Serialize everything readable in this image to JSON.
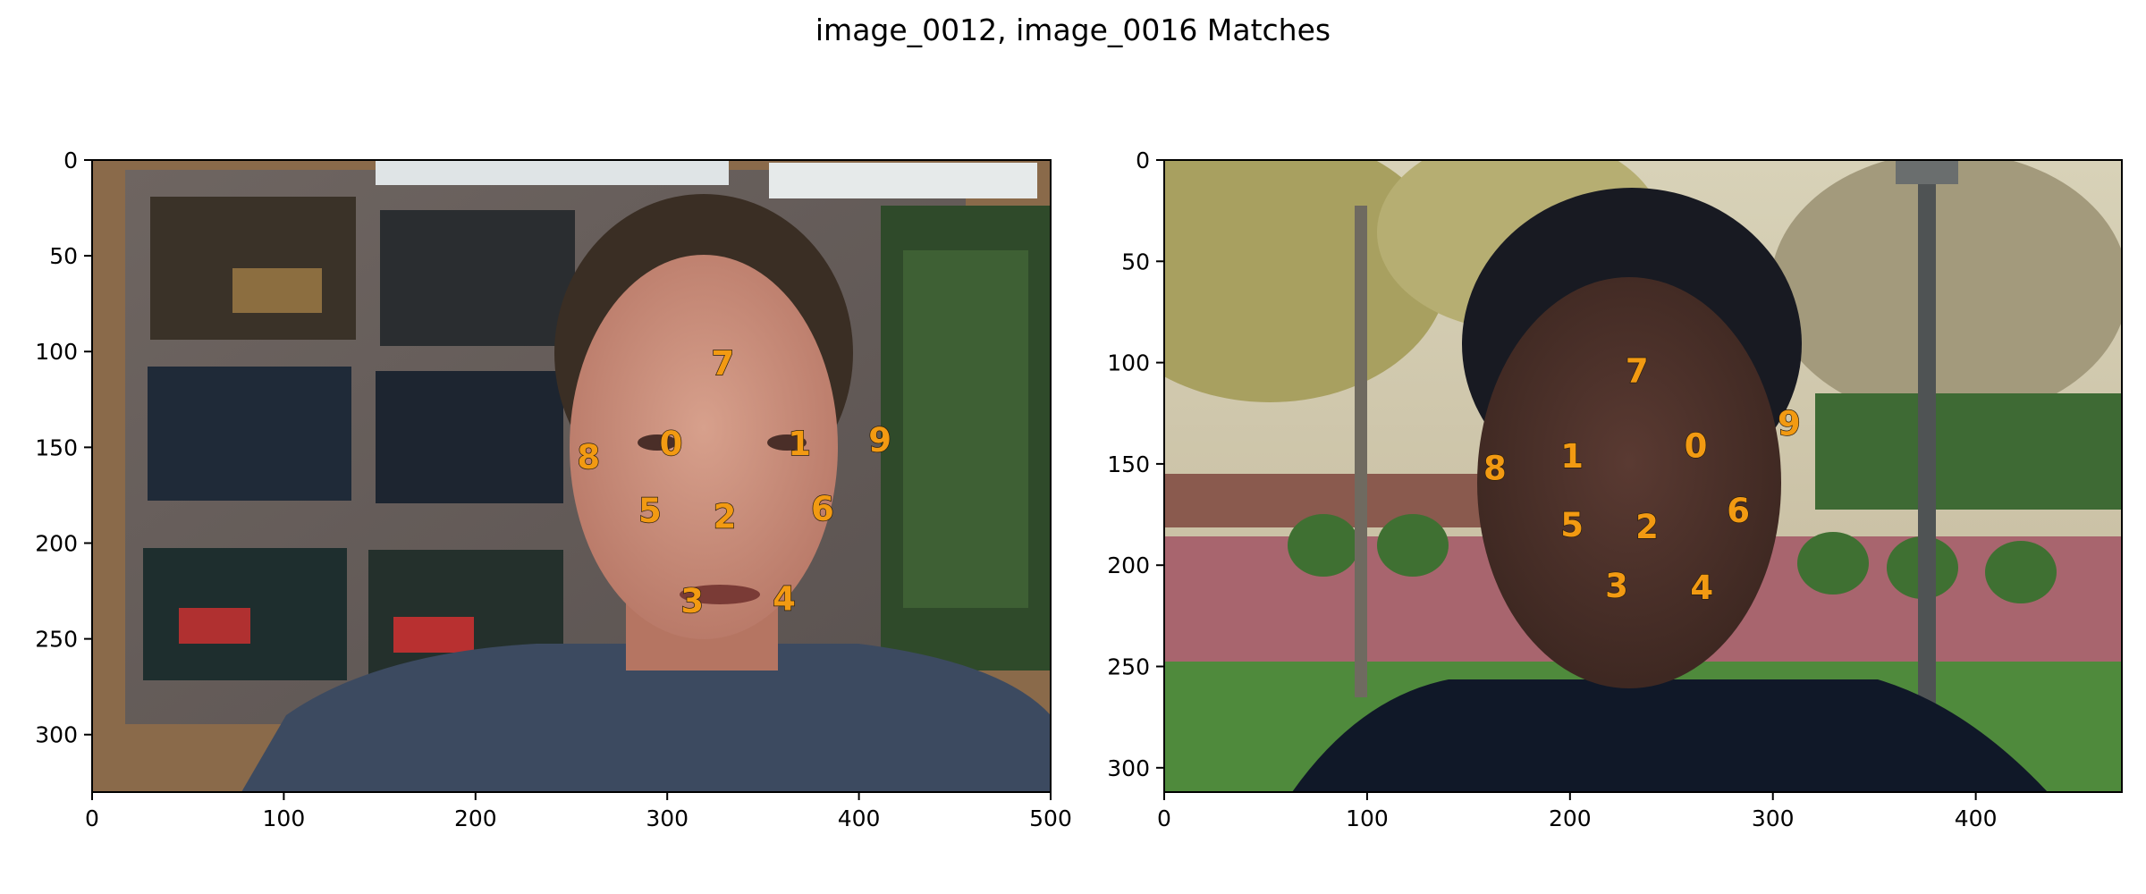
{
  "figure": {
    "suptitle": "image_0012, image_0016 Matches"
  },
  "colors": {
    "keypoint_label": "#f29a12"
  },
  "panels": [
    {
      "name": "image_0012",
      "description_icon": "photo-man-in-office-with-photo-board",
      "x_ticks": [
        0,
        100,
        200,
        300,
        400,
        500
      ],
      "y_ticks": [
        0,
        50,
        100,
        150,
        200,
        250,
        300
      ],
      "xlim": [
        0,
        500
      ],
      "ylim": [
        330,
        0
      ],
      "keypoints": [
        {
          "label": "0",
          "x": 302,
          "y": 148
        },
        {
          "label": "1",
          "x": 369,
          "y": 148
        },
        {
          "label": "2",
          "x": 330,
          "y": 186
        },
        {
          "label": "3",
          "x": 313,
          "y": 230
        },
        {
          "label": "4",
          "x": 361,
          "y": 229
        },
        {
          "label": "5",
          "x": 291,
          "y": 183
        },
        {
          "label": "6",
          "x": 381,
          "y": 182
        },
        {
          "label": "7",
          "x": 329,
          "y": 106
        },
        {
          "label": "8",
          "x": 259,
          "y": 155
        },
        {
          "label": "9",
          "x": 411,
          "y": 146
        }
      ]
    },
    {
      "name": "image_0016",
      "description_icon": "photo-man-outdoors-in-park",
      "x_ticks": [
        0,
        100,
        200,
        300,
        400
      ],
      "y_ticks": [
        0,
        50,
        100,
        150,
        200,
        250,
        300
      ],
      "xlim": [
        0,
        472
      ],
      "ylim": [
        312,
        0
      ],
      "keypoints": [
        {
          "label": "0",
          "x": 262,
          "y": 141
        },
        {
          "label": "1",
          "x": 201,
          "y": 146
        },
        {
          "label": "2",
          "x": 238,
          "y": 181
        },
        {
          "label": "3",
          "x": 223,
          "y": 210
        },
        {
          "label": "4",
          "x": 265,
          "y": 211
        },
        {
          "label": "5",
          "x": 201,
          "y": 180
        },
        {
          "label": "6",
          "x": 283,
          "y": 173
        },
        {
          "label": "7",
          "x": 233,
          "y": 104
        },
        {
          "label": "8",
          "x": 163,
          "y": 152
        },
        {
          "label": "9",
          "x": 308,
          "y": 130
        }
      ]
    }
  ]
}
